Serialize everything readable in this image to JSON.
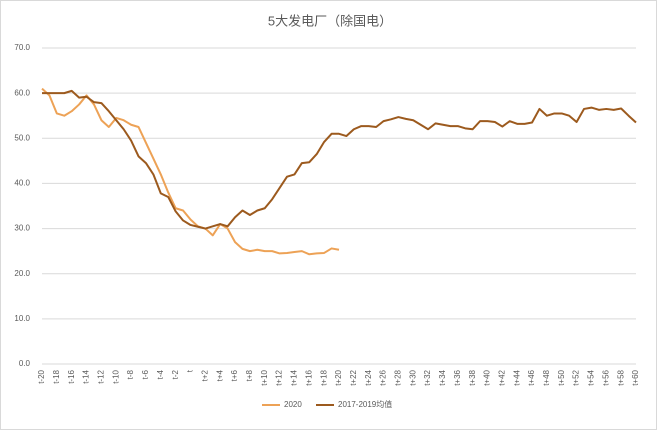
{
  "chart_data": {
    "type": "line",
    "title": "5大发电厂（除国电）",
    "categories": [
      "t-20",
      null,
      "t-18",
      null,
      "t-16",
      null,
      "t-14",
      null,
      "t-12",
      null,
      "t-10",
      null,
      "t-8",
      null,
      "t-6",
      null,
      "t-4",
      null,
      "t-2",
      null,
      "t",
      null,
      "t+2",
      null,
      "t+4",
      null,
      "t+6",
      null,
      "t+8",
      null,
      "t+10",
      null,
      "t+12",
      null,
      "t+14",
      null,
      "t+16",
      null,
      "t+18",
      null,
      "t+20",
      null,
      "t+22",
      null,
      "t+24",
      null,
      "t+26",
      null,
      "t+28",
      null,
      "t+30",
      null,
      "t+32",
      null,
      "t+34",
      null,
      "t+36",
      null,
      "t+38",
      null,
      "t+40",
      null,
      "t+42",
      null,
      "t+44",
      null,
      "t+46",
      null,
      "t+48",
      null,
      "t+50",
      null,
      "t+52",
      null,
      "t+54",
      null,
      "t+56",
      null,
      "t+58",
      null,
      "t+60"
    ],
    "series": [
      {
        "name": "2020",
        "color": "#eda256",
        "values": [
          61,
          59.5,
          55.5,
          55,
          56,
          57.5,
          59.5,
          57.5,
          54,
          52.5,
          54.5,
          54,
          53,
          52.5,
          49,
          45.5,
          42,
          38,
          34.5,
          34,
          32,
          30.5,
          30,
          28.5,
          31,
          30,
          27,
          25.5,
          25,
          25.3,
          25,
          25,
          24.5,
          24.6,
          24.8,
          25,
          24.3,
          24.5,
          24.6,
          25.6,
          25.3,
          null,
          null,
          null,
          null,
          null,
          null,
          null,
          null,
          null,
          null,
          null,
          null,
          null,
          null,
          null,
          null,
          null,
          null,
          null,
          null,
          null,
          null,
          null,
          null,
          null,
          null,
          null,
          null,
          null,
          null,
          null,
          null,
          null,
          null,
          null,
          null,
          null,
          null,
          null,
          null
        ]
      },
      {
        "name": "2017-2019均值",
        "color": "#9c5a1e",
        "values": [
          60,
          60,
          60,
          60,
          60.5,
          59,
          59.2,
          58,
          57.8,
          56,
          54,
          52,
          49.5,
          46,
          44.5,
          42,
          37.8,
          37,
          33.8,
          31.8,
          30.8,
          30.4,
          30,
          30.5,
          31,
          30.5,
          32.5,
          34,
          33,
          34,
          34.5,
          36.5,
          39,
          41.5,
          42,
          44.5,
          44.7,
          46.5,
          49.2,
          51,
          51,
          50.5,
          52,
          52.7,
          52.7,
          52.5,
          53.8,
          54.2,
          54.7,
          54.3,
          54,
          53,
          52,
          53.3,
          53,
          52.7,
          52.7,
          52.2,
          52,
          53.8,
          53.8,
          53.6,
          52.6,
          53.8,
          53.2,
          53.2,
          53.5,
          56.5,
          55,
          55.5,
          55.5,
          55,
          53.6,
          56.5,
          56.8,
          56.3,
          56.5,
          56.3,
          56.6,
          55,
          53.5
        ]
      }
    ],
    "ylim": [
      0,
      70
    ],
    "yticks": [
      {
        "value": 0,
        "label": "0.0"
      },
      {
        "value": 10,
        "label": "10.0"
      },
      {
        "value": 20,
        "label": "20.0"
      },
      {
        "value": 30,
        "label": "30.0"
      },
      {
        "value": 40,
        "label": "40.0"
      },
      {
        "value": 50,
        "label": "50.0"
      },
      {
        "value": 60,
        "label": "60.0"
      },
      {
        "value": 70,
        "label": "70.0"
      }
    ],
    "grid": true
  }
}
